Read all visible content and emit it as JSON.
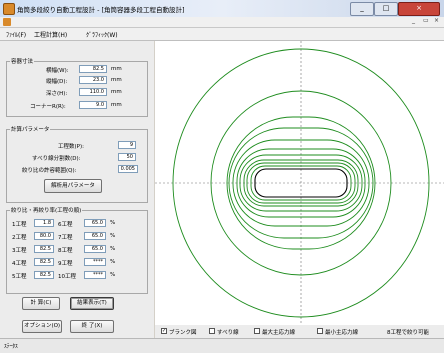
{
  "title": {
    "text": "角筒多段絞り自動工程設計 - [角筒容器多段工程自動設計]"
  },
  "window_controls": {
    "minimize": "_",
    "maximize": "□",
    "close": "×"
  },
  "mdi_controls": {
    "minimize": "_",
    "restore": "▭",
    "close": "×"
  },
  "menu": {
    "file": "ﾌｧｲﾙ(F)",
    "calc": "工程計算(H)",
    "graph": "ｸﾞﾗﾌｨｯｸ(W)"
  },
  "dimensions": {
    "title": "容器寸法",
    "width_label": "横幅(W):",
    "width_value": "82.5",
    "width_unit": "mm",
    "depth_label": "縦幅(D):",
    "depth_value": "23.0",
    "depth_unit": "mm",
    "height_label": "深さ(H):",
    "height_value": "110.0",
    "height_unit": "mm",
    "corner_label": "コーナーR(R):",
    "corner_value": "9.0",
    "corner_unit": "mm"
  },
  "params": {
    "title": "計算パラメータ",
    "steps_label": "工程数(P):",
    "steps_value": "9",
    "div_label": "すべり線分割数(D):",
    "div_value": "50",
    "range_label": "絞り比の許容範囲(Q):",
    "range_value": "0.005",
    "analysis_button": "解析用パラメータ"
  },
  "ratios": {
    "title": "絞り比・再絞り率(工程の順)",
    "rows": [
      {
        "l1": "1工程",
        "v1": "1.8",
        "l2": "6工程",
        "v2": "65.0",
        "unit": "%"
      },
      {
        "l1": "2工程",
        "v1": "80.0",
        "l2": "7工程",
        "v2": "65.0",
        "unit": "%"
      },
      {
        "l1": "3工程",
        "v1": "82.5",
        "l2": "8工程",
        "v2": "65.0",
        "unit": "%"
      },
      {
        "l1": "4工程",
        "v1": "82.5",
        "l2": "9工程",
        "v2": "****",
        "unit": "%"
      },
      {
        "l1": "5工程",
        "v1": "82.5",
        "l2": "10工程",
        "v2": "****",
        "unit": "%"
      }
    ]
  },
  "buttons": {
    "calc": "計 算(C)",
    "result": "結果表示(T)",
    "options": "オプション(O)",
    "exit": "終 了(X)"
  },
  "options": {
    "blank": {
      "label": "ブランク図",
      "checked": true
    },
    "slip": {
      "label": "すべり線",
      "checked": false
    },
    "max_principal": {
      "label": "最大主応力線",
      "checked": false
    },
    "min_principal": {
      "label": "最小主応力線",
      "checked": false
    },
    "note": "8工程で絞り可能"
  },
  "status": {
    "text": "ｽﾃｰﾀｽ"
  },
  "colors": {
    "contour": "#1e8c1e",
    "axis": "#707070"
  }
}
